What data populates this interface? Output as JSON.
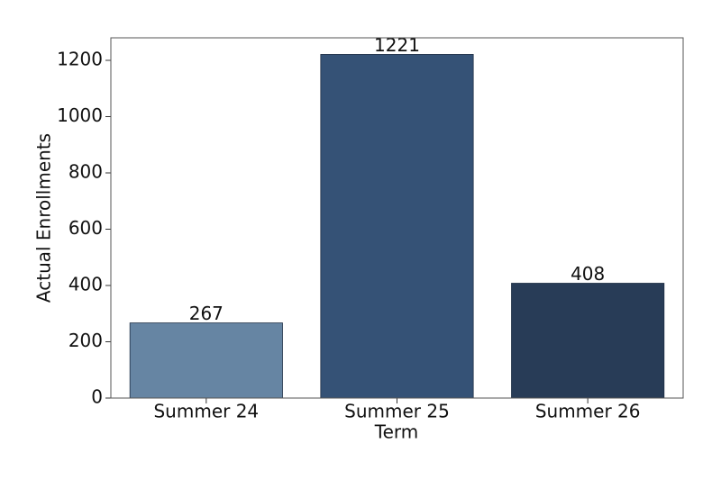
{
  "chart_data": {
    "type": "bar",
    "x_label": "Term",
    "y_label": "Actual Enrollments",
    "categories": [
      "Summer 24",
      "Summer 25",
      "Summer 26"
    ],
    "values": [
      267,
      1221,
      408
    ],
    "colors": [
      "#6685a3",
      "#355276",
      "#283c57"
    ],
    "ylim": [
      0,
      1280
    ],
    "yticks": [
      0,
      200,
      400,
      600,
      800,
      1000,
      1200
    ],
    "grid": false
  }
}
